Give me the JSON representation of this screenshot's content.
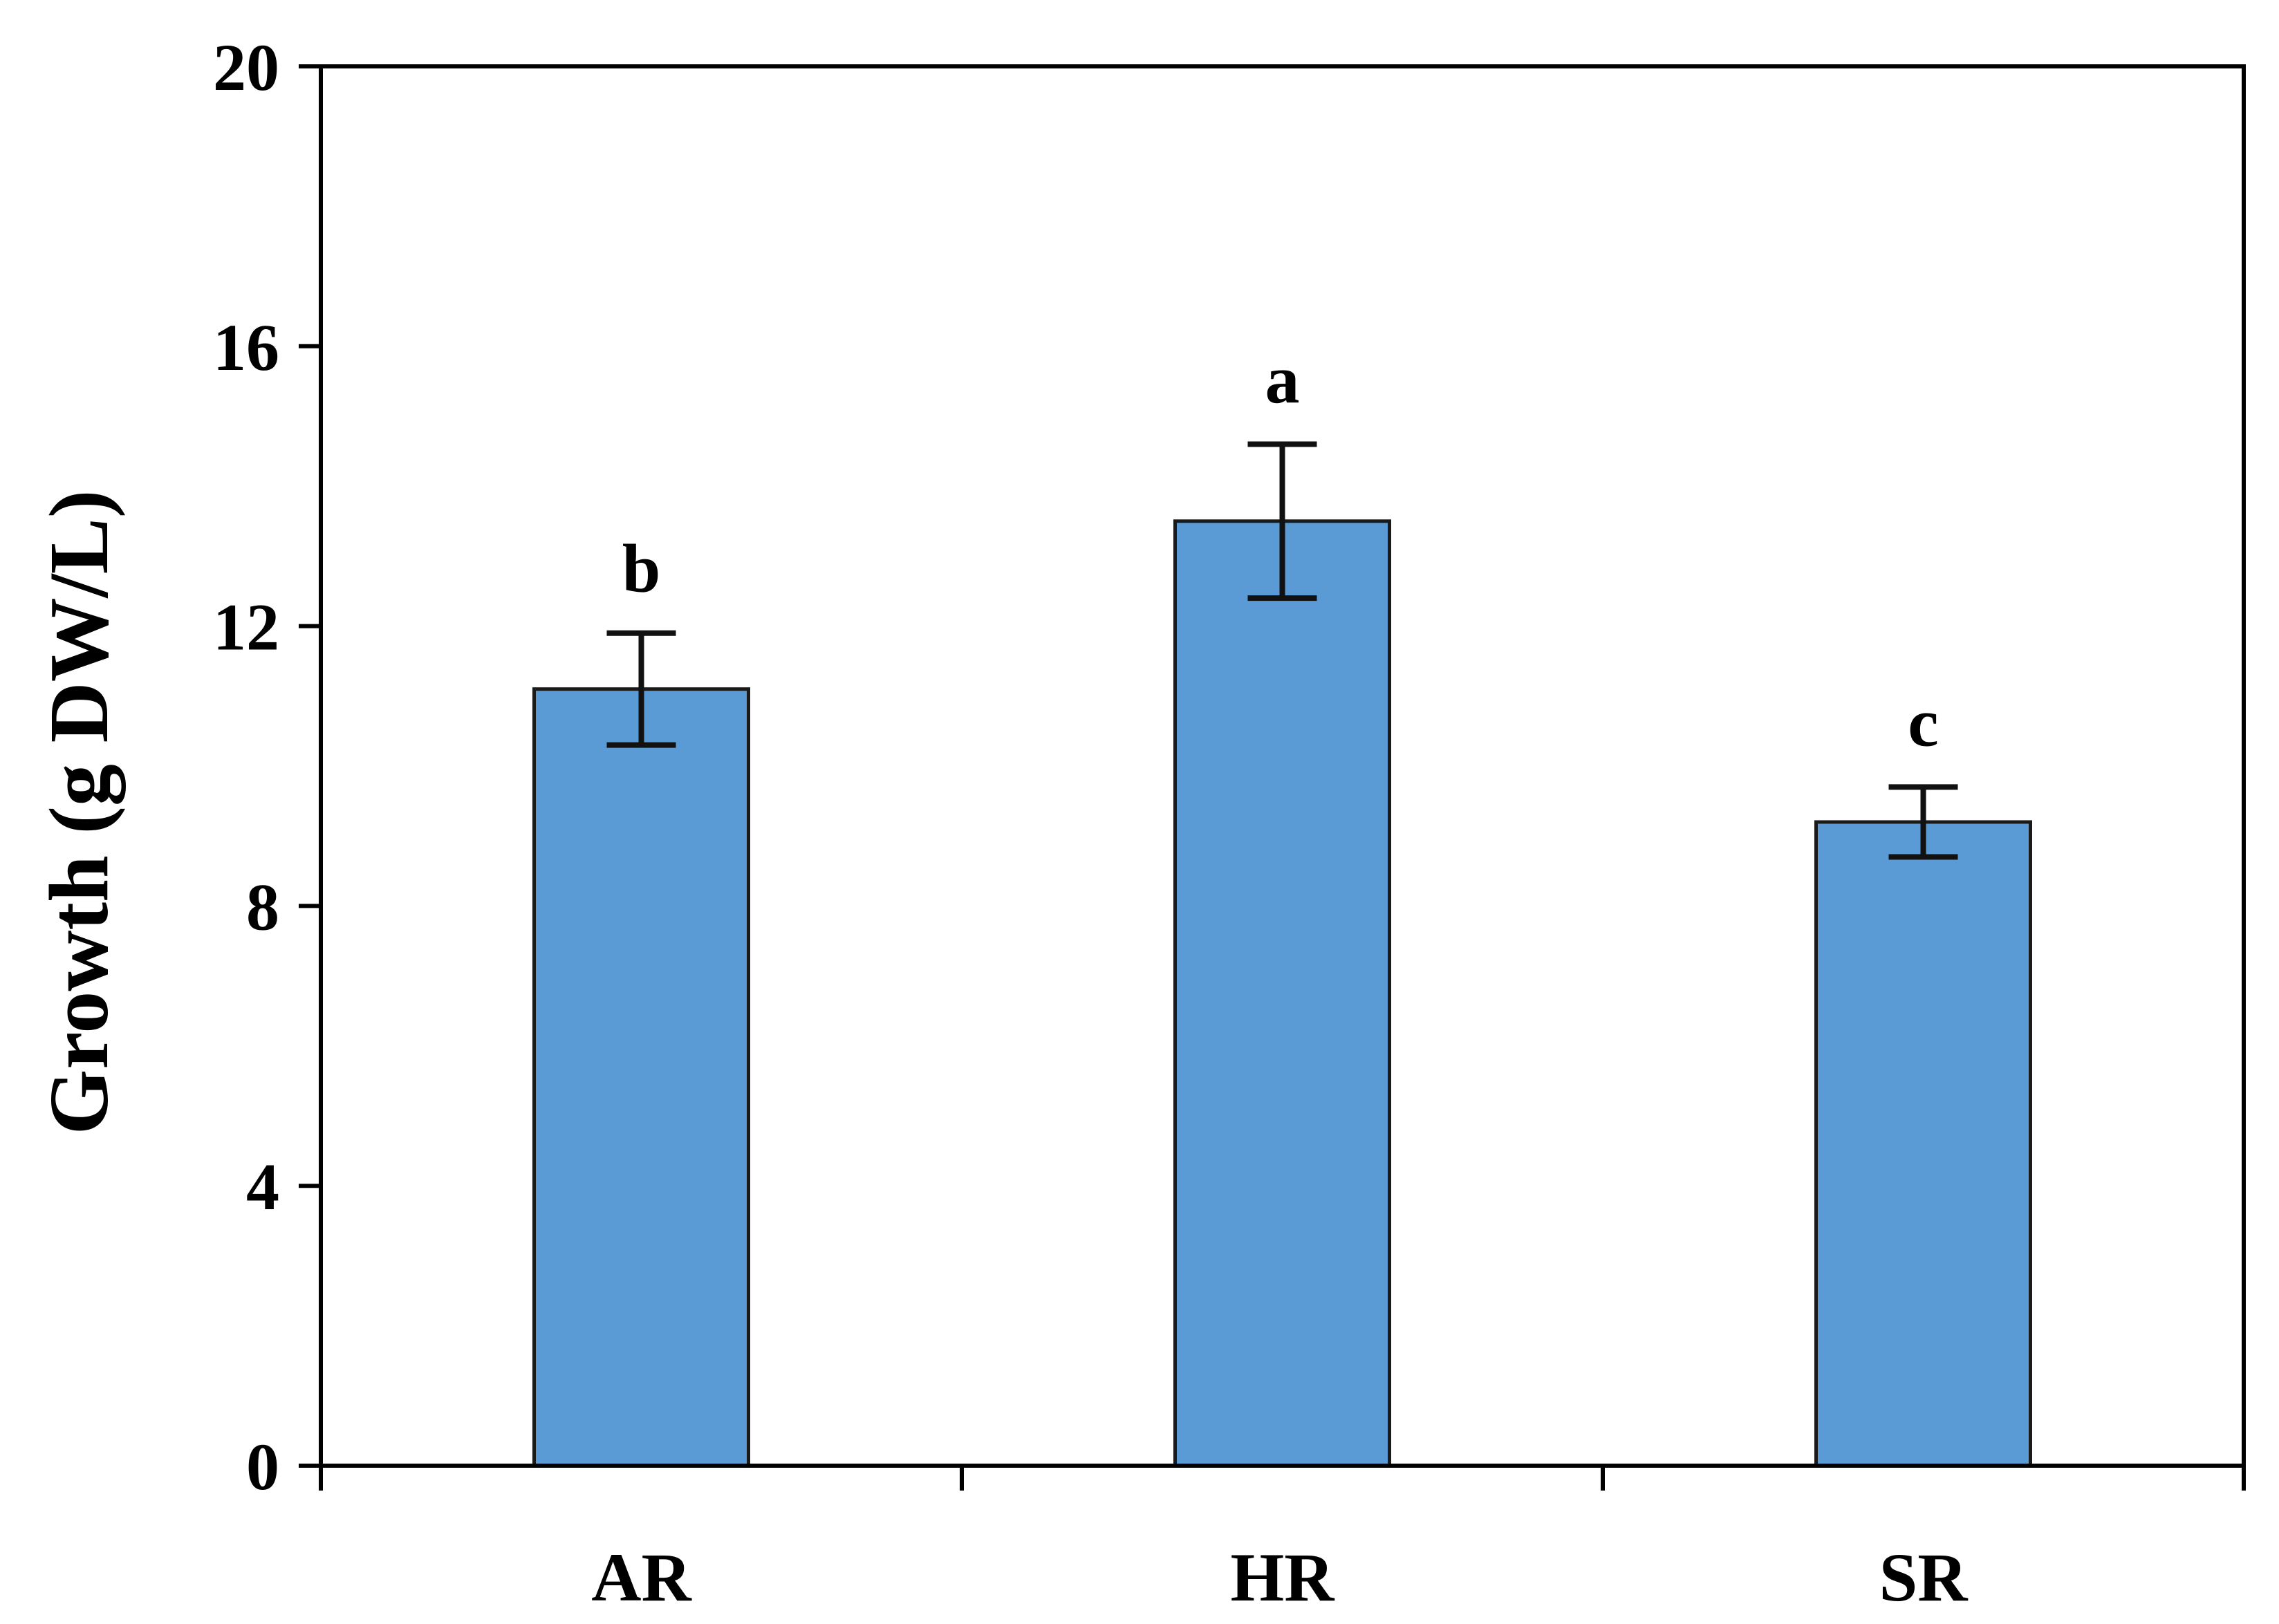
{
  "chart_data": {
    "type": "bar",
    "title": "",
    "xlabel": "",
    "ylabel": "Growth (g DW/L)",
    "ylim": [
      0,
      20
    ],
    "yticks": [
      0,
      4,
      8,
      12,
      16,
      20
    ],
    "ytick_labels": [
      "0",
      "4",
      "8",
      "12",
      "16",
      "20"
    ],
    "categories": [
      "AR",
      "HR",
      "SR"
    ],
    "values": [
      11.1,
      13.5,
      9.2
    ],
    "errors": [
      0.8,
      1.1,
      0.5
    ],
    "significance_labels": [
      "b",
      "a",
      "c"
    ],
    "grid": false,
    "legend": "none",
    "colors": {
      "bar_fill": "#5b9bd5",
      "bar_stroke": "#1a1a1a",
      "axis": "#000000",
      "text": "#000000"
    }
  }
}
